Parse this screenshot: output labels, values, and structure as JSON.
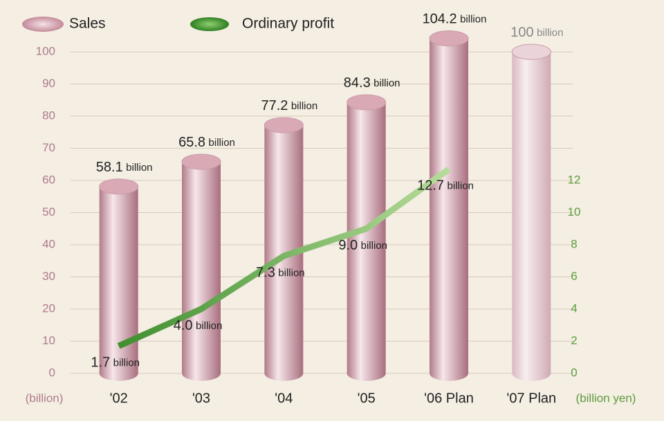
{
  "chart_data": {
    "type": "bar",
    "categories": [
      "'02",
      "'03",
      "'04",
      "'05",
      "'06 Plan",
      "'07 Plan"
    ],
    "series": [
      {
        "name": "Sales",
        "color": "#d9a9b6",
        "colors": [
          "#d9a9b6",
          "#d9a9b6",
          "#d9a9b6",
          "#d9a9b6",
          "#d9a9b6",
          "#ead3d9"
        ],
        "values": [
          58.1,
          65.8,
          77.2,
          84.3,
          104.2,
          100
        ]
      },
      {
        "name": "Ordinary profit",
        "type": "line",
        "axis": "y2",
        "color": "#6aa64a",
        "values": [
          1.7,
          4.0,
          7.3,
          9.0,
          12.7,
          null
        ],
        "value_labels": [
          "1.7",
          "4.0",
          "7.3",
          "9.0",
          "12.7",
          null
        ]
      }
    ],
    "value_unit": "billion",
    "ylabel": "(billion)",
    "y2label": "(billion yen)",
    "ylim": [
      0,
      100
    ],
    "yticks": [
      0,
      10,
      20,
      30,
      40,
      50,
      60,
      70,
      80,
      90,
      100
    ],
    "y2lim": [
      0,
      20
    ],
    "y2ticks": [
      0,
      2,
      4,
      6,
      8,
      10,
      12
    ],
    "grid": true,
    "legend": "top"
  }
}
